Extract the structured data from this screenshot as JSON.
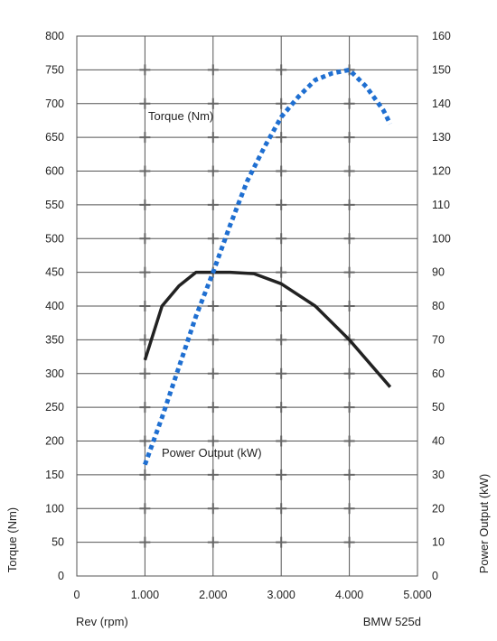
{
  "chart_data": {
    "type": "line",
    "xlabel": "Rev (rpm)",
    "ylabel_left": "Torque (Nm)",
    "ylabel_right": "Power Output (kW)",
    "footnote": "BMW 525d",
    "x_ticks": [
      "0",
      "1.000",
      "2.000",
      "3.000",
      "4.000",
      "5.000"
    ],
    "x_tick_values": [
      0,
      1000,
      2000,
      3000,
      4000,
      5000
    ],
    "xlim": [
      0,
      5000
    ],
    "ylim_left": [
      0,
      800
    ],
    "ylim_right": [
      0,
      160
    ],
    "y_left_ticks": [
      0,
      50,
      100,
      150,
      200,
      250,
      300,
      350,
      400,
      450,
      500,
      550,
      600,
      650,
      700,
      750,
      800
    ],
    "y_right_ticks": [
      0,
      10,
      20,
      30,
      40,
      50,
      60,
      70,
      80,
      90,
      100,
      110,
      120,
      130,
      140,
      150,
      160
    ],
    "grid": true,
    "series": [
      {
        "name": "Torque (Nm)",
        "axis": "left",
        "style": "solid",
        "color": "#222222",
        "x": [
          1000,
          1250,
          1500,
          1750,
          2000,
          2250,
          2600,
          3000,
          3500,
          4000,
          4600
        ],
        "y": [
          320,
          400,
          430,
          450,
          450,
          450,
          448,
          433,
          400,
          350,
          280
        ]
      },
      {
        "name": "Power Output (kW)",
        "axis": "right",
        "style": "dotted",
        "color": "#1f6fd1",
        "x": [
          1000,
          1250,
          1500,
          1750,
          2000,
          2250,
          2500,
          2750,
          3000,
          3250,
          3500,
          3750,
          4000,
          4250,
          4500,
          4600
        ],
        "y": [
          33,
          47,
          62,
          77,
          90,
          104,
          117,
          127,
          136,
          142,
          147,
          149,
          150,
          145,
          138,
          134
        ]
      }
    ],
    "annotations": [
      "Torque (Nm)",
      "Power Output (kW)"
    ]
  }
}
